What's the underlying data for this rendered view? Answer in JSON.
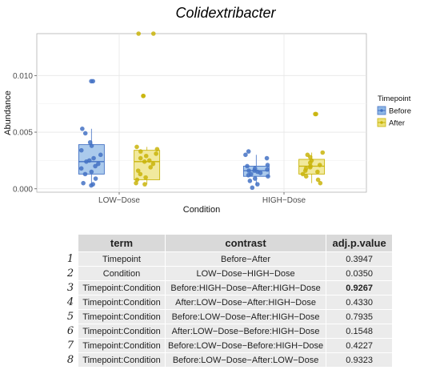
{
  "chart_data": {
    "type": "box",
    "title": "Colidextribacter",
    "xlabel": "Condition",
    "ylabel": "Abundance",
    "categories": [
      "LOW−Dose",
      "HIGH−Dose"
    ],
    "ylim": [
      -0.0003,
      0.0137
    ],
    "yticks": [
      0.0,
      0.005,
      0.01
    ],
    "ytick_labels": [
      "0.000",
      "0.005",
      "0.010"
    ],
    "legend": {
      "title": "Timepoint",
      "position": "right"
    },
    "series": [
      {
        "name": "Before",
        "color": "#4472c4",
        "fill": "#8fb8e6",
        "boxes": [
          {
            "category": "LOW−Dose",
            "min": 0.0003,
            "q1": 0.0013,
            "median": 0.0024,
            "q3": 0.0039,
            "max": 0.0053,
            "outliers": [
              0.0095
            ]
          },
          {
            "category": "HIGH−Dose",
            "min": 0.0003,
            "q1": 0.0011,
            "median": 0.0016,
            "q3": 0.002,
            "max": 0.003,
            "outliers": []
          }
        ],
        "points": [
          {
            "category": "LOW−Dose",
            "values": [
              0.0095,
              0.0095,
              0.0053,
              0.0049,
              0.0041,
              0.0038,
              0.0034,
              0.003,
              0.0027,
              0.0025,
              0.0024,
              0.0022,
              0.002,
              0.0018,
              0.0015,
              0.0013,
              0.0009,
              0.0005,
              0.0004,
              0.0003
            ]
          },
          {
            "category": "HIGH−Dose",
            "values": [
              0.0033,
              0.003,
              0.0027,
              0.0021,
              0.002,
              0.0018,
              0.0017,
              0.0016,
              0.0016,
              0.0015,
              0.0014,
              0.0013,
              0.0012,
              0.0011,
              0.0009,
              0.0007,
              0.0004,
              0.0001
            ]
          }
        ]
      },
      {
        "name": "After",
        "color": "#c9b40a",
        "fill": "#ece27c",
        "boxes": [
          {
            "category": "LOW−Dose",
            "min": 0.0004,
            "q1": 0.0008,
            "median": 0.0024,
            "q3": 0.0034,
            "max": 0.0037,
            "outliers": [
              0.0082,
              0.0082,
              0.0137,
              0.0137
            ]
          },
          {
            "category": "HIGH−Dose",
            "min": 0.0005,
            "q1": 0.0013,
            "median": 0.002,
            "q3": 0.0026,
            "max": 0.0032,
            "outliers": [
              0.0066,
              0.0066
            ]
          }
        ],
        "points": [
          {
            "category": "LOW−Dose",
            "values": [
              0.0137,
              0.0137,
              0.0082,
              0.0082,
              0.0037,
              0.0035,
              0.0033,
              0.0031,
              0.0029,
              0.0027,
              0.0025,
              0.0024,
              0.0022,
              0.0019,
              0.0016,
              0.0013,
              0.001,
              0.0008,
              0.0005,
              0.0004
            ]
          },
          {
            "category": "HIGH−Dose",
            "values": [
              0.0066,
              0.0066,
              0.0032,
              0.003,
              0.0028,
              0.0025,
              0.0023,
              0.0021,
              0.002,
              0.0019,
              0.0018,
              0.0016,
              0.0015,
              0.0013,
              0.0011,
              0.0008,
              0.0005
            ]
          }
        ]
      }
    ]
  },
  "table": {
    "headers": [
      "term",
      "contrast",
      "adj.p.value"
    ],
    "rows": [
      {
        "n": "1",
        "term": "Timepoint",
        "contrast": "Before−After",
        "p": "0.3947",
        "bold": false
      },
      {
        "n": "2",
        "term": "Condition",
        "contrast": "LOW−Dose−HIGH−Dose",
        "p": "0.0350",
        "bold": false
      },
      {
        "n": "3",
        "term": "Timepoint:Condition",
        "contrast": "Before:HIGH−Dose−After:HIGH−Dose",
        "p": "0.9267",
        "bold": true
      },
      {
        "n": "4",
        "term": "Timepoint:Condition",
        "contrast": "After:LOW−Dose−After:HIGH−Dose",
        "p": "0.4330",
        "bold": false
      },
      {
        "n": "5",
        "term": "Timepoint:Condition",
        "contrast": "Before:LOW−Dose−After:HIGH−Dose",
        "p": "0.7935",
        "bold": false
      },
      {
        "n": "6",
        "term": "Timepoint:Condition",
        "contrast": "After:LOW−Dose−Before:HIGH−Dose",
        "p": "0.1548",
        "bold": false
      },
      {
        "n": "7",
        "term": "Timepoint:Condition",
        "contrast": "Before:LOW−Dose−Before:HIGH−Dose",
        "p": "0.4227",
        "bold": false
      },
      {
        "n": "8",
        "term": "Timepoint:Condition",
        "contrast": "Before:LOW−Dose−After:LOW−Dose",
        "p": "0.9323",
        "bold": false
      }
    ]
  }
}
